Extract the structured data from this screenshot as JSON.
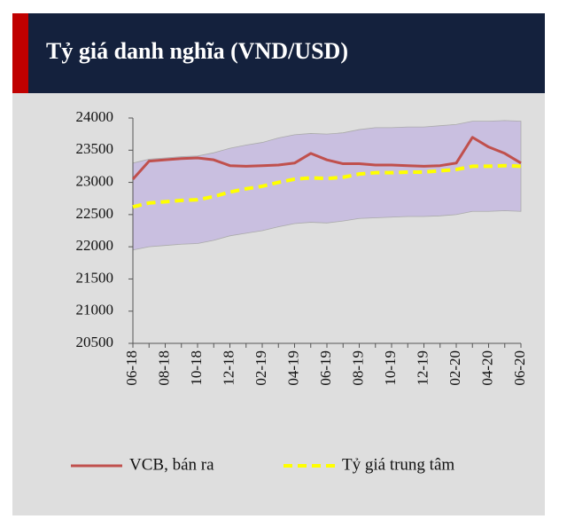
{
  "chart_data": {
    "type": "line",
    "title": "Tỷ giá danh nghĩa (VND/USD)",
    "categories": [
      "06-18",
      null,
      "08-18",
      null,
      "10-18",
      null,
      "12-18",
      null,
      "02-19",
      null,
      "04-19",
      null,
      "06-19",
      null,
      "08-19",
      null,
      "10-19",
      null,
      "12-19",
      null,
      "02-20",
      null,
      "04-20",
      null,
      "06-20"
    ],
    "series": [
      {
        "name": "VCB, bán ra",
        "color": "#c0504d",
        "values": [
          23050,
          23330,
          23350,
          23370,
          23380,
          23350,
          23260,
          23250,
          23260,
          23270,
          23300,
          23450,
          23350,
          23290,
          23290,
          23270,
          23270,
          23260,
          23250,
          23260,
          23300,
          23700,
          23550,
          23450,
          23300
        ]
      },
      {
        "name": "Tỷ giá trung tâm",
        "color": "#ffff00",
        "dashed": true,
        "values": [
          22620,
          22680,
          22700,
          22720,
          22730,
          22780,
          22850,
          22900,
          22940,
          23000,
          23050,
          23070,
          23060,
          23080,
          23130,
          23150,
          23150,
          23160,
          23160,
          23180,
          23200,
          23250,
          23250,
          23260,
          23250
        ]
      }
    ],
    "band": {
      "color": "#c9bfe0",
      "upper": [
        23300,
        23360,
        23380,
        23400,
        23410,
        23460,
        23530,
        23580,
        23620,
        23690,
        23740,
        23760,
        23750,
        23770,
        23820,
        23850,
        23850,
        23860,
        23860,
        23880,
        23900,
        23950,
        23950,
        23960,
        23950
      ],
      "lower": [
        21950,
        22000,
        22020,
        22040,
        22050,
        22100,
        22170,
        22210,
        22250,
        22310,
        22360,
        22380,
        22370,
        22400,
        22440,
        22450,
        22460,
        22470,
        22470,
        22480,
        22500,
        22550,
        22550,
        22560,
        22550
      ]
    },
    "ylim": [
      20500,
      24000
    ],
    "yticks": [
      20500,
      21000,
      21500,
      22000,
      22500,
      23000,
      23500,
      24000
    ]
  }
}
